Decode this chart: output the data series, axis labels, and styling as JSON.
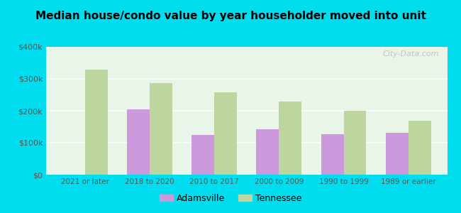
{
  "title": "Median house/condo value by year householder moved into unit",
  "categories": [
    "2021 or later",
    "2018 to 2020",
    "2010 to 2017",
    "2000 to 2009",
    "1990 to 1999",
    "1989 or earlier"
  ],
  "adamsville": [
    0,
    205000,
    125000,
    143000,
    127000,
    132000
  ],
  "tennessee": [
    330000,
    287000,
    257000,
    228000,
    200000,
    168000
  ],
  "adamsville_color": "#cc99dd",
  "tennessee_color": "#bdd6a0",
  "background_color": "#e8f5e8",
  "outer_background": "#00ddee",
  "ylim": [
    0,
    400000
  ],
  "yticks": [
    0,
    100000,
    200000,
    300000,
    400000
  ],
  "ytick_labels": [
    "$0",
    "$100k",
    "$200k",
    "$300k",
    "$400k"
  ],
  "watermark": "City-Data.com",
  "legend_adamsville": "Adamsville",
  "legend_tennessee": "Tennessee",
  "title_fontsize": 11,
  "bar_width": 0.35
}
